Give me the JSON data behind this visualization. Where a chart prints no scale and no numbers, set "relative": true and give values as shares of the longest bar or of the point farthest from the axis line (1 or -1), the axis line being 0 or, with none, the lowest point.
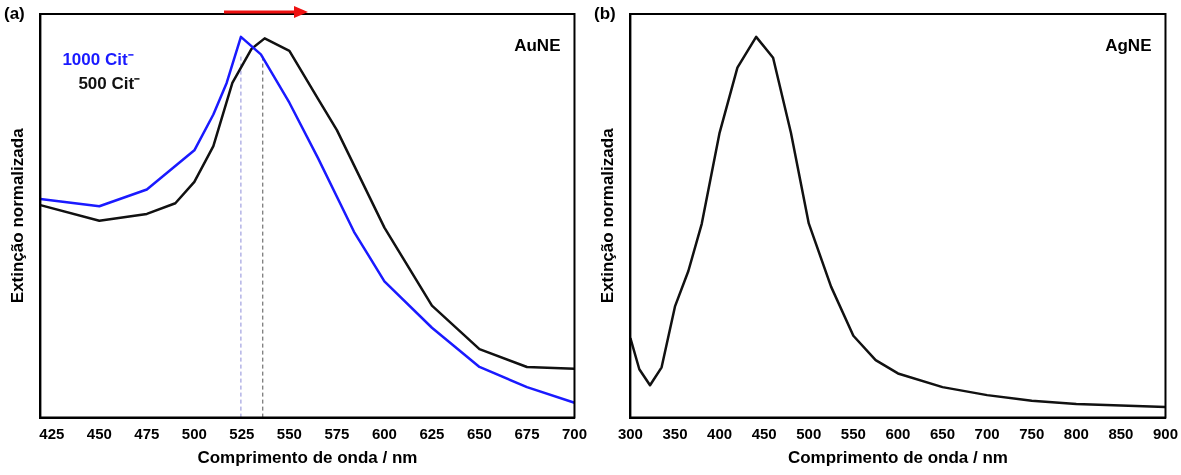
{
  "chart_data": [
    {
      "type": "line",
      "xlabel": "Comprimento de onda / nm",
      "ylabel": "Extinção normalizada",
      "relative": true,
      "xlim": [
        419,
        700
      ],
      "xticks": [
        425,
        450,
        475,
        500,
        525,
        550,
        575,
        600,
        625,
        650,
        675,
        700
      ],
      "legend": "top left",
      "annotations": [
        "(a)",
        "AuNE"
      ],
      "ref_lines": [
        {
          "axis": "x",
          "value": 524.5,
          "color": "#8c8cd9",
          "line_style": "dashed"
        },
        {
          "axis": "x",
          "value": 536,
          "color": "#555555",
          "line_style": "dashed"
        }
      ],
      "series": [
        {
          "name": "1000 Cit⁻",
          "color": "#1a1aff",
          "x": [
            419,
            450,
            475,
            500,
            510,
            517,
            524.5,
            535,
            550,
            565,
            584,
            600,
            625,
            650,
            675,
            700
          ],
          "values": [
            0.574,
            0.555,
            0.599,
            0.702,
            0.796,
            0.879,
            1,
            0.954,
            0.827,
            0.682,
            0.488,
            0.358,
            0.236,
            0.133,
            0.08,
            0.039
          ]
        },
        {
          "name": "500 Cit⁻",
          "color": "#111111",
          "x": [
            419,
            450,
            475,
            490,
            500,
            510,
            520,
            530,
            537,
            550,
            565,
            575,
            600,
            625,
            650,
            675,
            700
          ],
          "values": [
            0.558,
            0.517,
            0.535,
            0.563,
            0.619,
            0.713,
            0.879,
            0.968,
            0.996,
            0.963,
            0.838,
            0.755,
            0.499,
            0.294,
            0.18,
            0.133,
            0.128
          ]
        }
      ]
    },
    {
      "type": "line",
      "xlabel": "Comprimento de onda / nm",
      "ylabel": "Extinção normalizada",
      "relative": true,
      "xlim": [
        300,
        900
      ],
      "xticks": [
        300,
        350,
        400,
        450,
        500,
        550,
        600,
        650,
        700,
        750,
        800,
        850,
        900
      ],
      "annotations": [
        "(b)",
        "AgNE"
      ],
      "series": [
        {
          "color": "#111111",
          "x": [
            300,
            310,
            322,
            335,
            350,
            365,
            380,
            400,
            420,
            441,
            460,
            480,
            500,
            525,
            550,
            575,
            600,
            650,
            700,
            750,
            800,
            900
          ],
          "values": [
            0.209,
            0.127,
            0.085,
            0.132,
            0.292,
            0.385,
            0.509,
            0.748,
            0.919,
            1,
            0.945,
            0.748,
            0.51,
            0.344,
            0.215,
            0.151,
            0.116,
            0.08,
            0.059,
            0.044,
            0.036,
            0.028
          ]
        }
      ]
    }
  ]
}
